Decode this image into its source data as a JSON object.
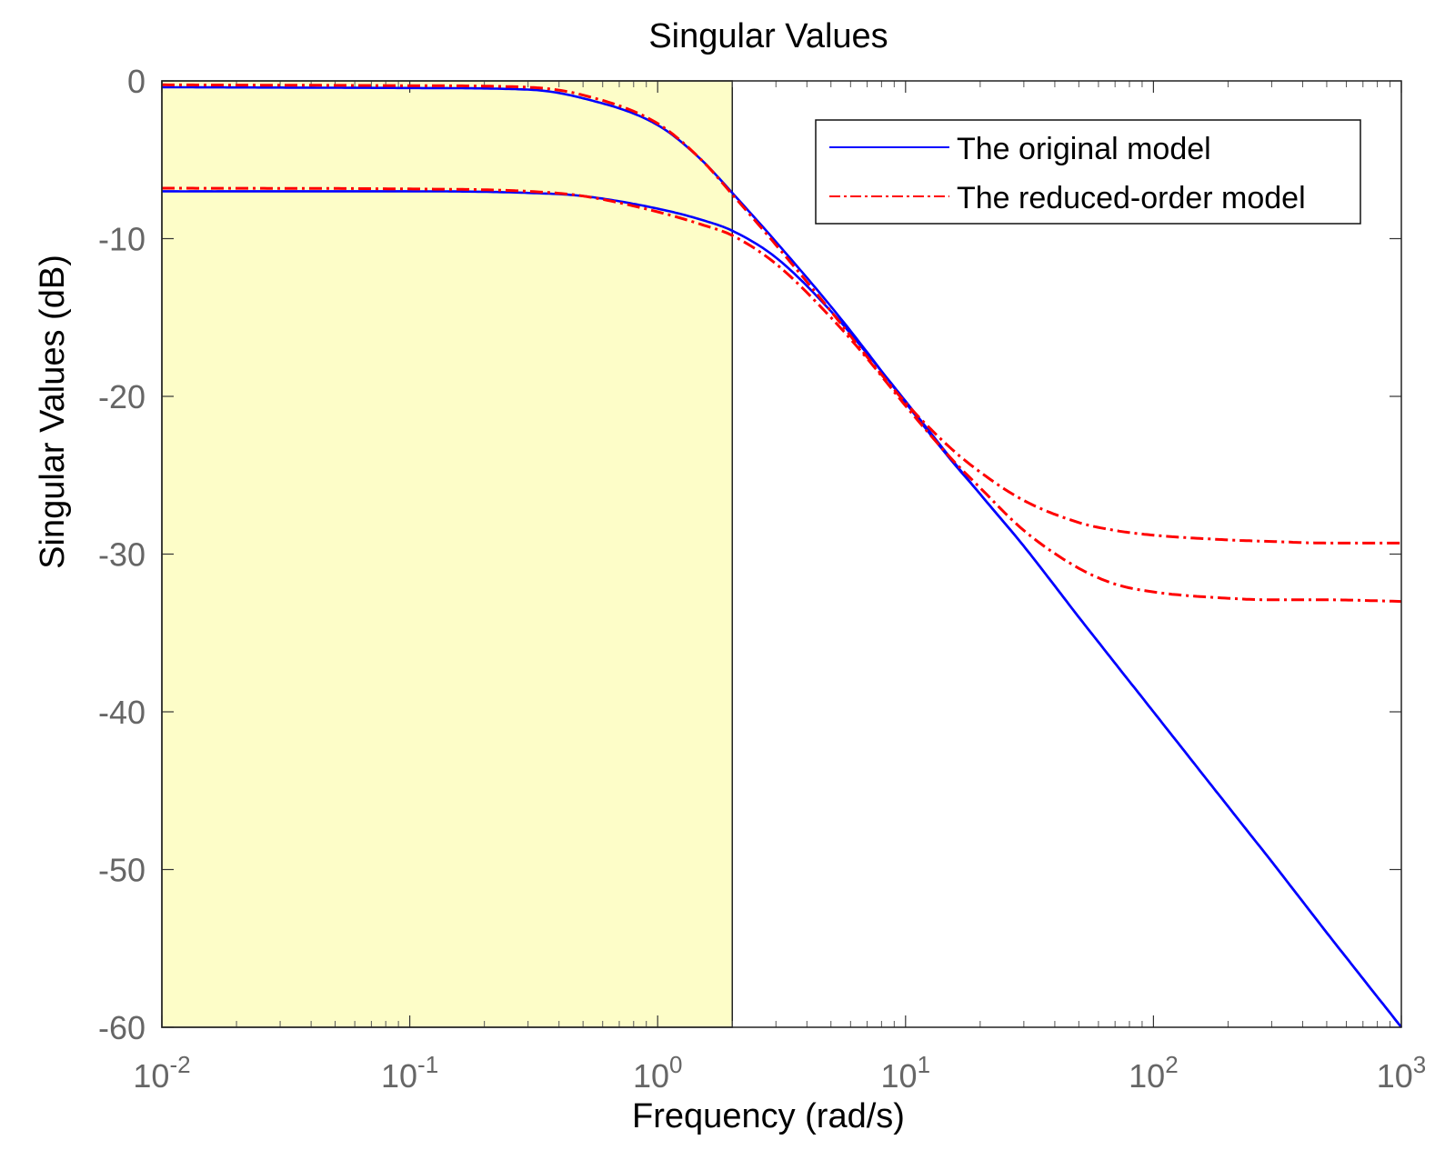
{
  "chart_data": {
    "type": "line",
    "title": "Singular Values",
    "xlabel": "Frequency (rad/s)",
    "ylabel": "Singular Values (dB)",
    "xscale": "log",
    "xlim": [
      0.01,
      1000
    ],
    "ylim": [
      -60,
      0
    ],
    "grid": false,
    "x_tick_labels": [
      {
        "base": "10",
        "exp": "-2",
        "value": 0.01
      },
      {
        "base": "10",
        "exp": "-1",
        "value": 0.1
      },
      {
        "base": "10",
        "exp": "0",
        "value": 1
      },
      {
        "base": "10",
        "exp": "1",
        "value": 10
      },
      {
        "base": "10",
        "exp": "2",
        "value": 100
      },
      {
        "base": "10",
        "exp": "3",
        "value": 1000
      }
    ],
    "y_tick_labels": [
      {
        "label": "0",
        "value": 0
      },
      {
        "label": "-10",
        "value": -10
      },
      {
        "label": "-20",
        "value": -20
      },
      {
        "label": "-30",
        "value": -30
      },
      {
        "label": "-40",
        "value": -40
      },
      {
        "label": "-50",
        "value": -50
      },
      {
        "label": "-60",
        "value": -60
      }
    ],
    "shaded_region": {
      "x_from": 0.01,
      "x_to": 2,
      "color": "#fdfdc8"
    },
    "legend": {
      "position": "top-right",
      "entries": [
        {
          "label": "The original model",
          "color": "#0000ff",
          "style": "solid"
        },
        {
          "label": "The reduced-order model",
          "color": "#ff0000",
          "style": "dashdot"
        }
      ]
    },
    "series": [
      {
        "name": "The original model - sigma 1",
        "color": "#0000ff",
        "style": "solid",
        "x": [
          0.01,
          0.1,
          0.3,
          0.5,
          1,
          1.5,
          2,
          3,
          5,
          7,
          10,
          15,
          20,
          30,
          50,
          100,
          200,
          300,
          500,
          1000
        ],
        "y": [
          -0.4,
          -0.45,
          -0.55,
          -1.1,
          -2.8,
          -5.0,
          -7.1,
          -10.2,
          -14.3,
          -17.2,
          -20.4,
          -23.9,
          -26.2,
          -29.5,
          -34.0,
          -40.0,
          -46.0,
          -49.5,
          -54.0,
          -60.0
        ]
      },
      {
        "name": "The original model - sigma 2",
        "color": "#0000ff",
        "style": "solid",
        "x": [
          0.01,
          0.1,
          0.3,
          0.5,
          1,
          1.5,
          2,
          3,
          5,
          7,
          10,
          15,
          20,
          30,
          50,
          100,
          200,
          300,
          500,
          1000
        ],
        "y": [
          -7.0,
          -7.0,
          -7.1,
          -7.3,
          -8.1,
          -8.8,
          -9.5,
          -11.2,
          -14.6,
          -17.3,
          -20.3,
          -23.8,
          -26.2,
          -29.5,
          -34.0,
          -40.0,
          -46.0,
          -49.5,
          -54.0,
          -60.0
        ]
      },
      {
        "name": "The reduced-order model - sigma 1",
        "color": "#ff0000",
        "style": "dashdot",
        "x": [
          0.01,
          0.1,
          0.3,
          0.5,
          1,
          1.5,
          2,
          3,
          5,
          7,
          10,
          15,
          20,
          30,
          50,
          70,
          100,
          200,
          300,
          500,
          1000
        ],
        "y": [
          -0.25,
          -0.3,
          -0.4,
          -0.9,
          -2.7,
          -5.0,
          -7.2,
          -10.4,
          -14.6,
          -17.5,
          -20.4,
          -23.2,
          -24.8,
          -26.6,
          -28.0,
          -28.5,
          -28.8,
          -29.1,
          -29.2,
          -29.3,
          -29.3
        ]
      },
      {
        "name": "The reduced-order model - sigma 2",
        "color": "#ff0000",
        "style": "dashdot",
        "x": [
          0.01,
          0.1,
          0.3,
          0.5,
          1,
          1.5,
          2,
          3,
          5,
          7,
          10,
          15,
          20,
          30,
          50,
          70,
          100,
          200,
          300,
          500,
          1000
        ],
        "y": [
          -6.8,
          -6.85,
          -7.0,
          -7.3,
          -8.3,
          -9.1,
          -9.8,
          -11.6,
          -15.0,
          -17.6,
          -20.6,
          -23.8,
          -25.8,
          -28.5,
          -30.9,
          -31.9,
          -32.4,
          -32.8,
          -32.9,
          -32.9,
          -33.0
        ]
      }
    ]
  }
}
